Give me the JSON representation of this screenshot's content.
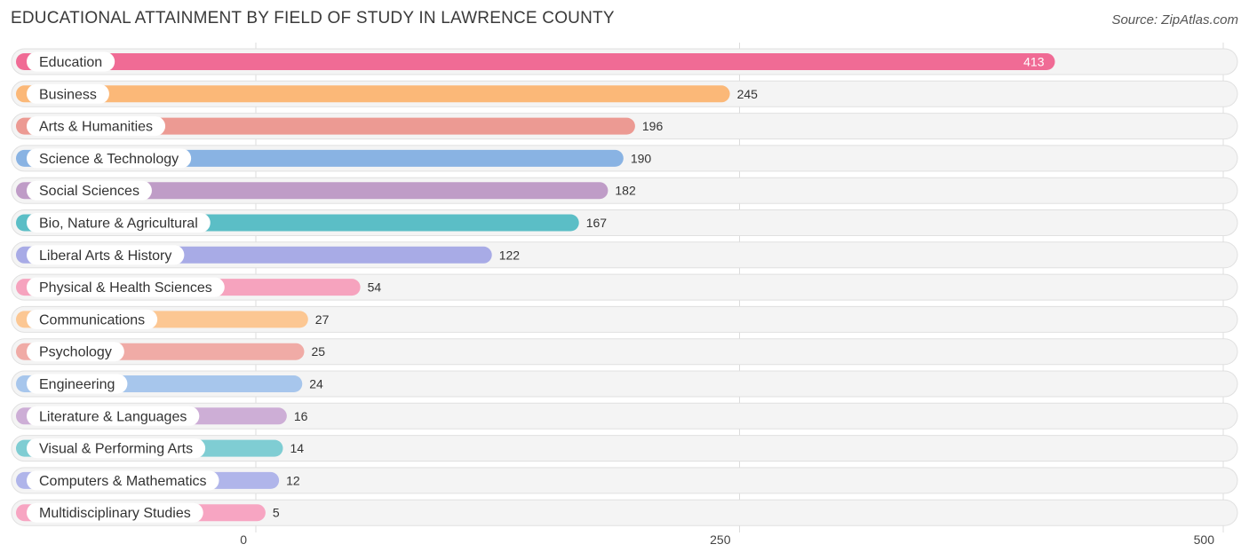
{
  "header": {
    "title": "EDUCATIONAL ATTAINMENT BY FIELD OF STUDY IN LAWRENCE COUNTY",
    "source": "Source: ZipAtlas.com"
  },
  "chart_data": {
    "type": "bar",
    "orientation": "horizontal",
    "title": "EDUCATIONAL ATTAINMENT BY FIELD OF STUDY IN LAWRENCE COUNTY",
    "xlabel": "",
    "ylabel": "",
    "xlim": [
      0,
      500
    ],
    "ticks": [
      0,
      250,
      500
    ],
    "tick_labels": [
      "0",
      "250",
      "500"
    ],
    "grid": true,
    "categories": [
      "Education",
      "Business",
      "Arts & Humanities",
      "Science & Technology",
      "Social Sciences",
      "Bio, Nature & Agricultural",
      "Liberal Arts & History",
      "Physical & Health Sciences",
      "Communications",
      "Psychology",
      "Engineering",
      "Literature & Languages",
      "Visual & Performing Arts",
      "Computers & Mathematics",
      "Multidisciplinary Studies"
    ],
    "values": [
      413,
      245,
      196,
      190,
      182,
      167,
      122,
      54,
      27,
      25,
      24,
      16,
      14,
      12,
      5
    ],
    "colors": [
      "#f06b95",
      "#fbb878",
      "#ec9a93",
      "#89b3e3",
      "#bf9cc7",
      "#5bbec6",
      "#a8abe6",
      "#f6a3be",
      "#fcc793",
      "#f0aba6",
      "#a7c6ec",
      "#cdaed6",
      "#7fcdd3",
      "#b0b5ea",
      "#f7a5c2"
    ]
  }
}
